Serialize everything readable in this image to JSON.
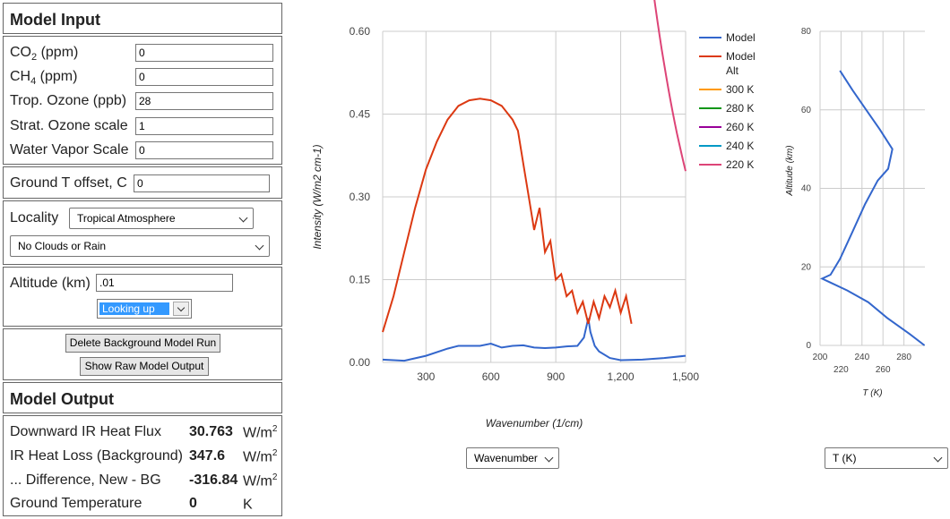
{
  "input": {
    "title": "Model Input",
    "co2_label_main": "CO",
    "co2_label_sub": "2",
    "co2_label_tail": " (ppm)",
    "co2_value": "0",
    "ch4_label_main": "CH",
    "ch4_label_sub": "4",
    "ch4_label_tail": " (ppm)",
    "ch4_value": "0",
    "trop_ozone_label": "Trop. Ozone (ppb)",
    "trop_ozone_value": "28",
    "strat_ozone_label": "Strat. Ozone scale",
    "strat_ozone_value": "1",
    "water_vapor_label": "Water Vapor Scale",
    "water_vapor_value": "0",
    "ground_offset_label": "Ground T offset, C",
    "ground_offset_value": "0",
    "locality_label": "Locality",
    "locality_value": "Tropical Atmosphere",
    "clouds_value": "No Clouds or Rain",
    "altitude_label": "Altitude (km)",
    "altitude_value": ".01",
    "view_value": "Looking up",
    "delete_button": "Delete Background Model Run",
    "raw_button": "Show Raw Model Output"
  },
  "output": {
    "title": "Model Output",
    "rows": [
      {
        "label": "Downward IR Heat Flux",
        "value": "30.763",
        "unit": "W/m",
        "sup": "2"
      },
      {
        "label": "IR Heat Loss (Background)",
        "value": "347.6",
        "unit": "W/m",
        "sup": "2"
      },
      {
        "label": "... Difference, New - BG",
        "value": "-316.84",
        "unit": "W/m",
        "sup": "2"
      },
      {
        "label": "Ground Temperature",
        "value": "0",
        "unit": "K",
        "sup": ""
      }
    ]
  },
  "colors": {
    "model": "#3366cc",
    "model_alt": "#dc3912",
    "k300": "#ff9900",
    "k280": "#109618",
    "k260": "#990099",
    "k240": "#0099c6",
    "k220": "#dd4477"
  },
  "controls": {
    "x_axis_select": "Wavenumber",
    "profile_select": "T (K)"
  },
  "chart_data": [
    {
      "type": "line",
      "xlabel": "Wavenumber (1/cm)",
      "ylabel": "Intensity (W/m2 cm-1)",
      "xlim": [
        100,
        1500
      ],
      "ylim": [
        0,
        0.6
      ],
      "x_ticks": [
        "300",
        "600",
        "900",
        "1,200",
        "1,500"
      ],
      "y_ticks": [
        "0.00",
        "0.15",
        "0.30",
        "0.45",
        "0.60"
      ],
      "legend_position": "right",
      "series": [
        {
          "name": "Model",
          "color_key": "model",
          "points": [
            [
              100,
              0.005
            ],
            [
              200,
              0.003
            ],
            [
              300,
              0.012
            ],
            [
              400,
              0.025
            ],
            [
              450,
              0.03
            ],
            [
              500,
              0.03
            ],
            [
              550,
              0.03
            ],
            [
              600,
              0.034
            ],
            [
              650,
              0.027
            ],
            [
              700,
              0.03
            ],
            [
              750,
              0.031
            ],
            [
              800,
              0.027
            ],
            [
              850,
              0.026
            ],
            [
              900,
              0.027
            ],
            [
              950,
              0.029
            ],
            [
              1000,
              0.03
            ],
            [
              1030,
              0.045
            ],
            [
              1050,
              0.08
            ],
            [
              1060,
              0.055
            ],
            [
              1080,
              0.03
            ],
            [
              1100,
              0.02
            ],
            [
              1150,
              0.008
            ],
            [
              1200,
              0.004
            ],
            [
              1300,
              0.005
            ],
            [
              1400,
              0.008
            ],
            [
              1500,
              0.012
            ]
          ]
        },
        {
          "name": "Model Alt",
          "color_key": "model_alt",
          "points": [
            [
              100,
              0.055
            ],
            [
              150,
              0.12
            ],
            [
              200,
              0.2
            ],
            [
              250,
              0.28
            ],
            [
              300,
              0.35
            ],
            [
              350,
              0.4
            ],
            [
              400,
              0.44
            ],
            [
              450,
              0.465
            ],
            [
              500,
              0.475
            ],
            [
              550,
              0.478
            ],
            [
              600,
              0.475
            ],
            [
              650,
              0.465
            ],
            [
              700,
              0.44
            ],
            [
              725,
              0.42
            ],
            [
              750,
              0.36
            ],
            [
              775,
              0.3
            ],
            [
              800,
              0.24
            ],
            [
              825,
              0.28
            ],
            [
              850,
              0.2
            ],
            [
              875,
              0.22
            ],
            [
              900,
              0.15
            ],
            [
              925,
              0.16
            ],
            [
              950,
              0.12
            ],
            [
              975,
              0.13
            ],
            [
              1000,
              0.09
            ],
            [
              1025,
              0.11
            ],
            [
              1050,
              0.07
            ],
            [
              1075,
              0.11
            ],
            [
              1100,
              0.08
            ],
            [
              1125,
              0.12
            ],
            [
              1150,
              0.1
            ],
            [
              1175,
              0.13
            ],
            [
              1200,
              0.09
            ],
            [
              1225,
              0.12
            ],
            [
              1250,
              0.07
            ]
          ]
        },
        {
          "name": "300 K",
          "temp": 300,
          "color_key": "k300"
        },
        {
          "name": "280 K",
          "temp": 280,
          "color_key": "k280"
        },
        {
          "name": "260 K",
          "temp": 260,
          "color_key": "k260"
        },
        {
          "name": "240 K",
          "temp": 240,
          "color_key": "k240"
        },
        {
          "name": "220 K",
          "temp": 220,
          "color_key": "k220"
        }
      ]
    },
    {
      "type": "line",
      "xlabel": "T (K)",
      "ylabel": "Altitude (km)",
      "xlim": [
        200,
        300
      ],
      "ylim": [
        0,
        80
      ],
      "x_ticks_top": [
        "200",
        "240",
        "280"
      ],
      "x_ticks_bottom": [
        "220",
        "260"
      ],
      "y_ticks": [
        "0",
        "20",
        "40",
        "60",
        "80"
      ],
      "series": [
        {
          "color_key": "model",
          "points": [
            [
              299.7,
              0
            ],
            [
              285,
              3
            ],
            [
              264,
              7
            ],
            [
              246,
              11
            ],
            [
              226,
              14
            ],
            [
              210,
              16
            ],
            [
              202,
              17
            ],
            [
              210,
              18
            ],
            [
              219,
              22
            ],
            [
              231,
              29
            ],
            [
              243,
              36
            ],
            [
              255,
              42
            ],
            [
              265,
              45
            ],
            [
              269,
              50
            ],
            [
              257,
              55
            ],
            [
              244,
              60
            ],
            [
              231,
              65
            ],
            [
              219,
              70
            ]
          ]
        }
      ]
    }
  ]
}
